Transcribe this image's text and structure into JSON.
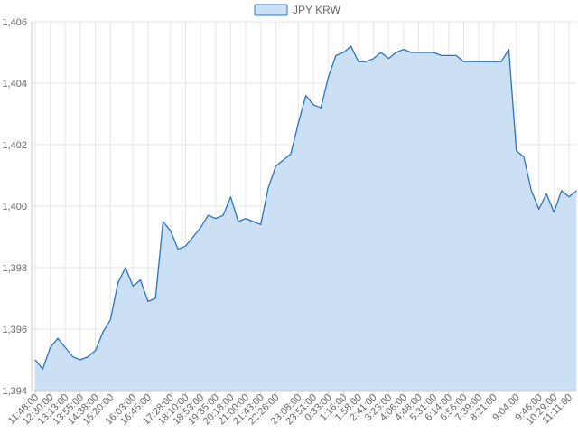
{
  "chart_data": {
    "type": "area",
    "title": "",
    "xlabel": "",
    "ylabel": "",
    "legend_position": "top-center",
    "grid": true,
    "ylim": [
      1394,
      1406
    ],
    "y_ticks": [
      1394,
      1396,
      1398,
      1400,
      1402,
      1404,
      1406
    ],
    "y_tick_labels": [
      "1,394",
      "1,396",
      "1,398",
      "1,400",
      "1,402",
      "1,404",
      "1,406"
    ],
    "x_tick_labels": [
      "11:48:00",
      "12:30:00",
      "13:13:00",
      "13:55:00",
      "14:38:00",
      "15:20:00",
      "16:03:00",
      "16:45:00",
      "17:28:00",
      "18:10:00",
      "18:53:00",
      "19:35:00",
      "20:18:00",
      "21:00:00",
      "21:43:00",
      "22:26:00",
      "23:08:00",
      "23:51:00",
      "0:33:00",
      "1:16:00",
      "1:58:00",
      "2:41:00",
      "3:23:00",
      "4:06:00",
      "4:48:00",
      "5:31:00",
      "6:14:00",
      "6:56:00",
      "7:39:00",
      "8:21:00",
      "9:04:00",
      "9:46:00",
      "10:29:00",
      "11:11:00"
    ],
    "series": [
      {
        "name": "JPY KRW",
        "color": "#2a72c8",
        "fill": "#cce0f5",
        "x": [
          "11:48:00",
          "12:09:00",
          "12:30:00",
          "12:51:00",
          "13:13:00",
          "13:34:00",
          "13:55:00",
          "14:16:00",
          "14:38:00",
          "14:59:00",
          "15:20:00",
          "15:30:00",
          "15:41:00",
          "16:03:00",
          "16:24:00",
          "16:45:00",
          "17:00:00",
          "17:10:00",
          "17:28:00",
          "17:49:00",
          "18:10:00",
          "18:31:00",
          "18:53:00",
          "19:14:00",
          "19:35:00",
          "19:56:00",
          "20:18:00",
          "20:39:00",
          "21:00:00",
          "21:21:00",
          "21:43:00",
          "22:04:00",
          "22:26:00",
          "22:36:00",
          "22:47:00",
          "23:08:00",
          "23:29:00",
          "23:51:00",
          "0:12:00",
          "0:33:00",
          "0:54:00",
          "1:16:00",
          "1:37:00",
          "1:58:00",
          "2:19:00",
          "2:41:00",
          "3:02:00",
          "3:23:00",
          "3:44:00",
          "4:06:00",
          "4:27:00",
          "4:48:00",
          "5:09:00",
          "5:31:00",
          "5:52:00",
          "6:14:00",
          "6:35:00",
          "6:56:00",
          "7:17:00",
          "7:39:00",
          "8:00:00",
          "8:21:00",
          "8:42:00",
          "8:58:00",
          "9:04:00",
          "9:15:00",
          "9:25:00",
          "9:46:00",
          "10:07:00",
          "10:29:00",
          "10:50:00",
          "11:11:00",
          "11:32:00"
        ],
        "values": [
          1395.0,
          1394.7,
          1395.4,
          1395.7,
          1395.4,
          1395.1,
          1395.0,
          1395.1,
          1395.3,
          1395.9,
          1396.3,
          1397.5,
          1398.0,
          1397.4,
          1397.6,
          1396.9,
          1397.0,
          1399.5,
          1399.2,
          1398.6,
          1398.7,
          1399.0,
          1399.3,
          1399.7,
          1399.6,
          1399.7,
          1400.3,
          1399.5,
          1399.6,
          1399.5,
          1399.4,
          1400.6,
          1401.3,
          1401.5,
          1401.7,
          1402.7,
          1403.6,
          1403.3,
          1403.2,
          1404.2,
          1404.9,
          1405.0,
          1405.2,
          1404.7,
          1404.7,
          1404.8,
          1405.0,
          1404.8,
          1405.0,
          1405.1,
          1405.0,
          1405.0,
          1405.0,
          1405.0,
          1404.9,
          1404.9,
          1404.9,
          1404.7,
          1404.7,
          1404.7,
          1404.7,
          1404.7,
          1404.7,
          1405.1,
          1401.8,
          1401.6,
          1400.5,
          1399.9,
          1400.4,
          1399.8,
          1400.5,
          1400.3,
          1400.5
        ]
      }
    ]
  }
}
